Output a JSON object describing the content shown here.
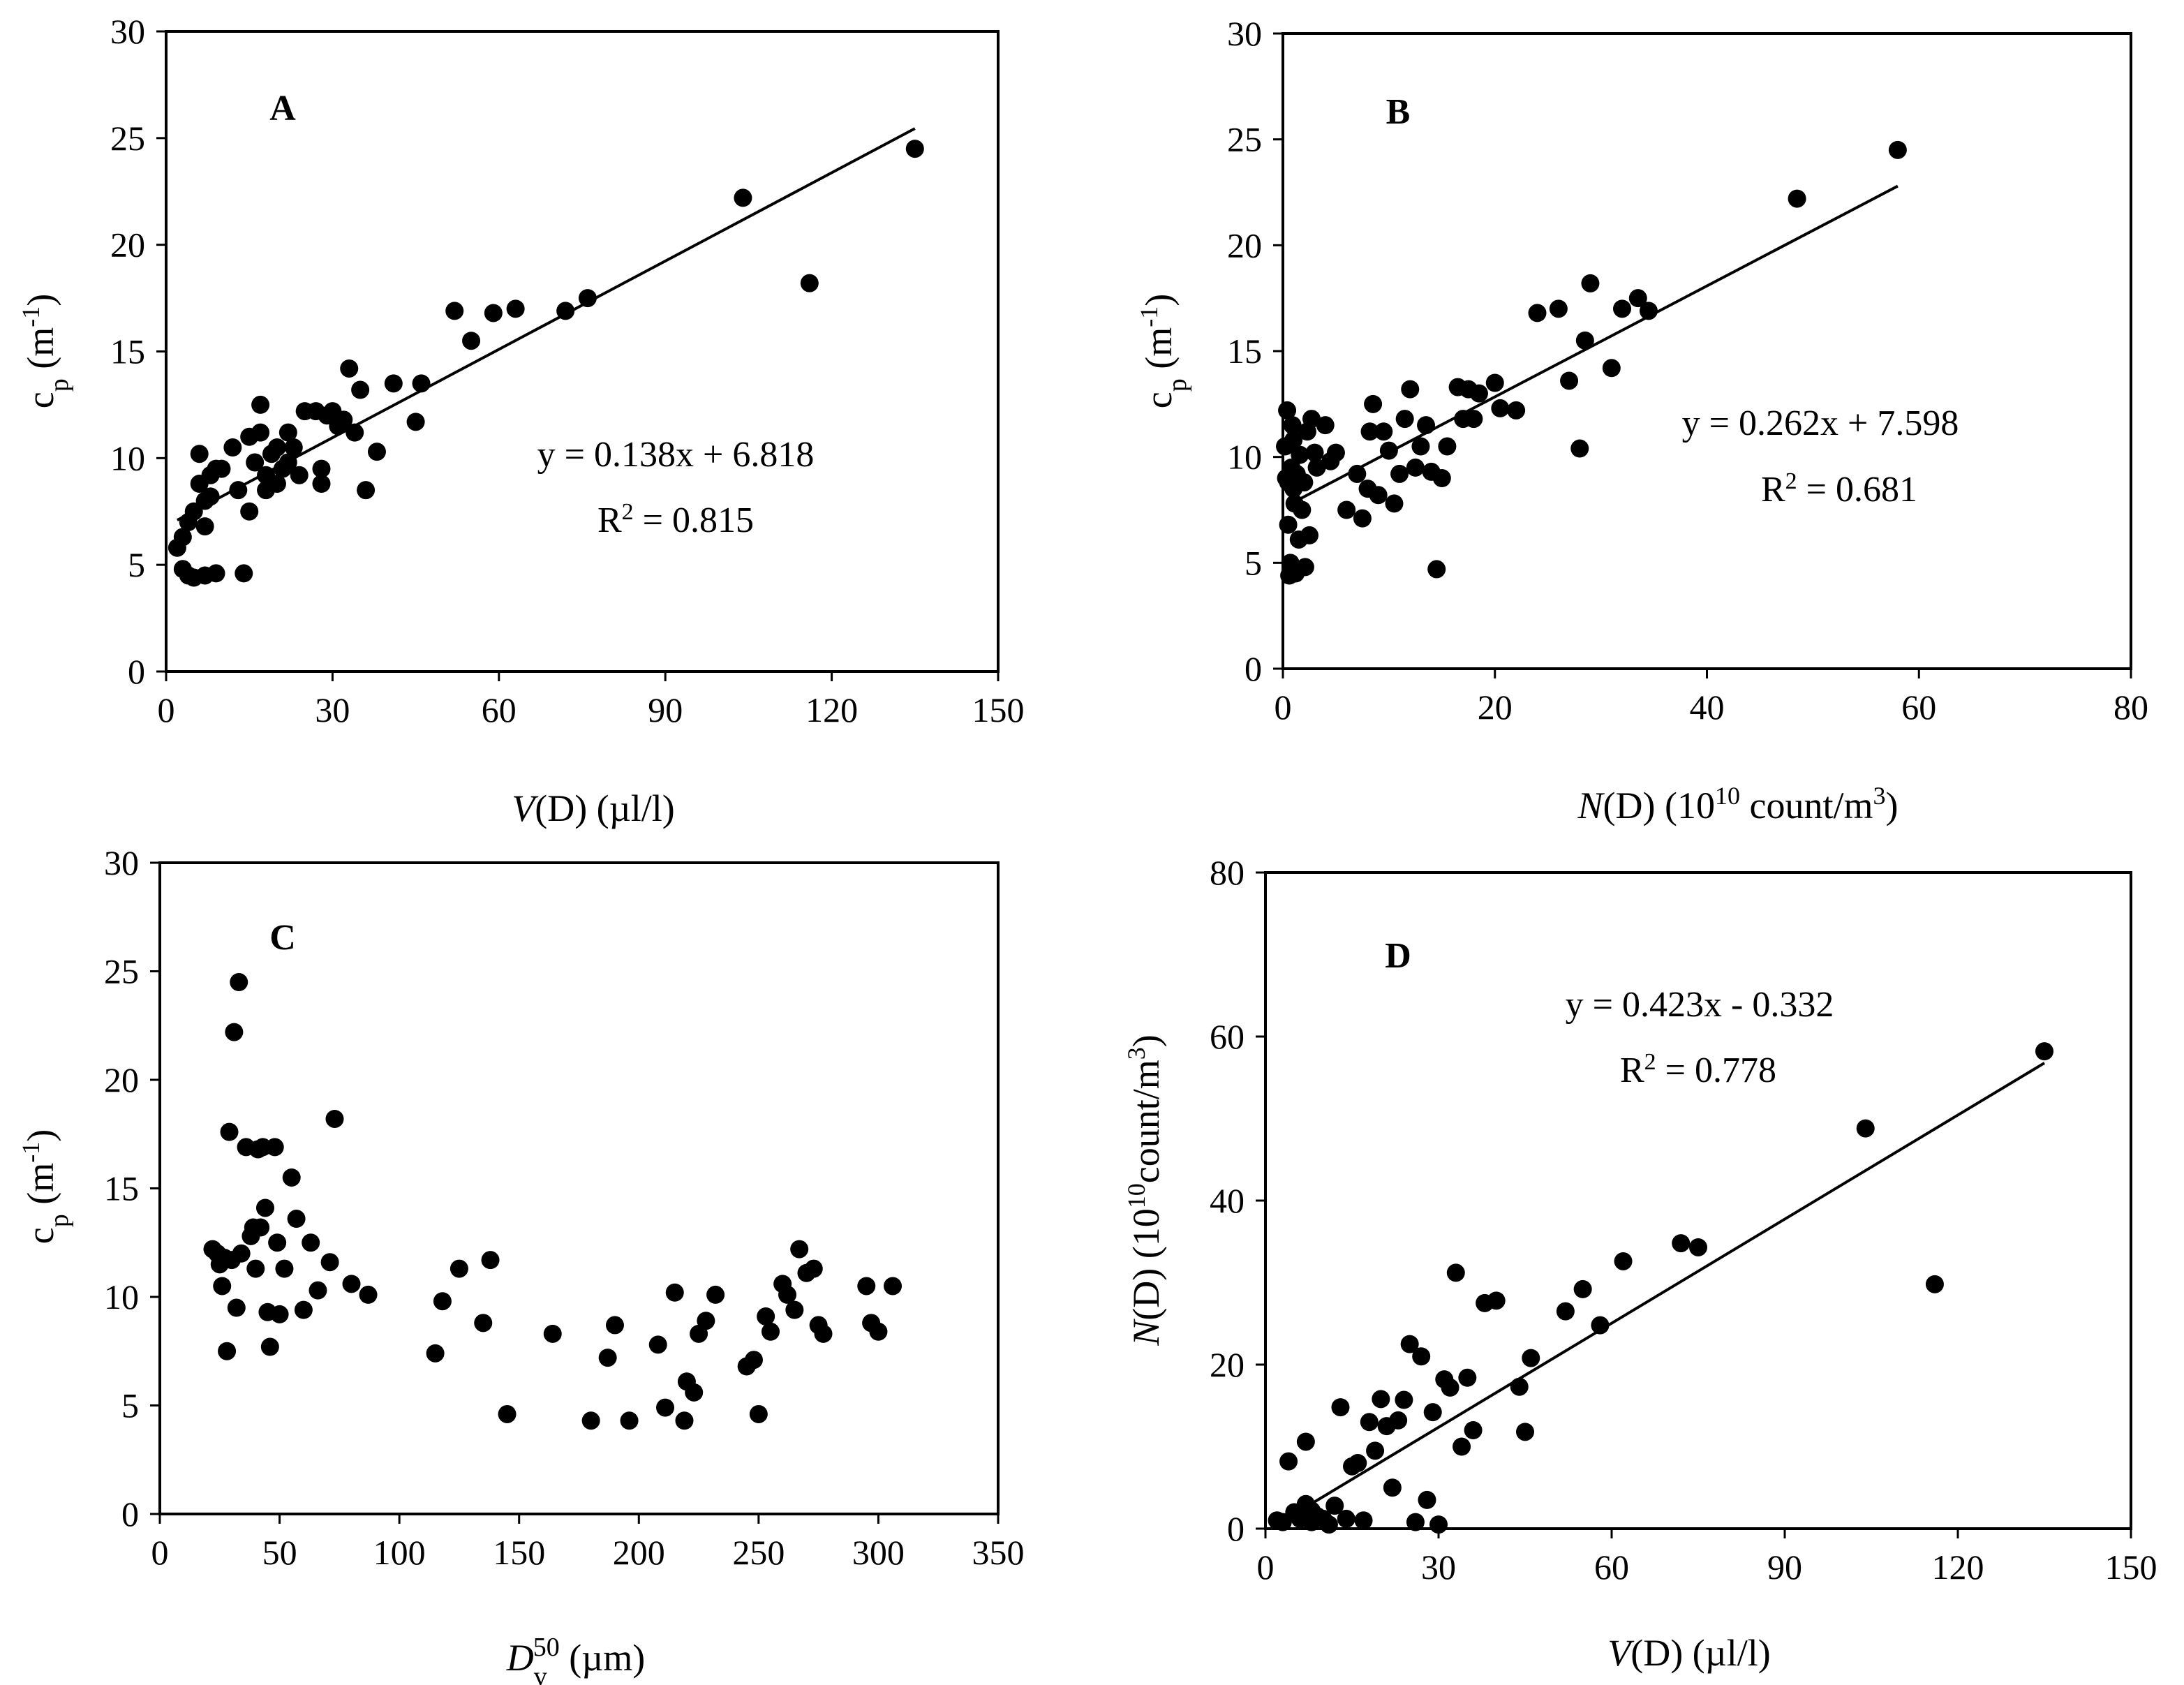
{
  "chart_data": [
    {
      "id": "A",
      "type": "scatter",
      "panel_label": "A",
      "xlabel": "V(D) (µl/l)",
      "xlabel_parts": {
        "var": "V",
        "rest": "(D)  (µl/l)"
      },
      "ylabel": "cp (m-1)",
      "ylabel_parts": {
        "base": "c",
        "sub": "p",
        "mid": " (m",
        "sup": "-1",
        "end": ")"
      },
      "xlim": [
        0,
        150
      ],
      "ylim": [
        0,
        30
      ],
      "xticks": [
        0,
        30,
        60,
        90,
        120,
        150
      ],
      "yticks": [
        0,
        5,
        10,
        15,
        20,
        25,
        30
      ],
      "fit": {
        "slope": 0.138,
        "intercept": 6.818,
        "x_range": [
          2,
          135
        ]
      },
      "equation": "y = 0.138x + 6.818",
      "r2_label": "R",
      "r2_sup": "2",
      "r2_value": " = 0.815",
      "x": [
        2,
        3,
        3,
        4,
        4,
        5,
        5,
        6,
        6,
        7,
        7,
        7,
        8,
        8,
        9,
        9,
        10,
        12,
        13,
        14,
        15,
        15,
        16,
        17,
        17,
        18,
        18,
        19,
        20,
        20,
        21,
        22,
        22,
        23,
        24,
        25,
        27,
        28,
        28,
        29,
        30,
        31,
        32,
        33,
        34,
        35,
        36,
        38,
        41,
        45,
        46,
        52,
        55,
        59,
        63,
        72,
        76,
        104,
        116,
        135
      ],
      "y": [
        5.8,
        6.3,
        4.8,
        7,
        4.5,
        7.5,
        4.4,
        8.8,
        10.2,
        8,
        6.8,
        4.5,
        9.2,
        8.2,
        9.5,
        4.6,
        9.5,
        10.5,
        8.5,
        4.6,
        11,
        7.5,
        9.8,
        12.5,
        11.2,
        9.2,
        8.5,
        10.2,
        10.5,
        8.8,
        9.5,
        11.2,
        9.8,
        10.5,
        9.2,
        12.2,
        12.2,
        9.5,
        8.8,
        12,
        12.2,
        11.5,
        11.8,
        14.2,
        11.2,
        13.2,
        8.5,
        10.3,
        13.5,
        11.7,
        13.5,
        16.9,
        15.5,
        16.8,
        17,
        16.9,
        17.5,
        22.2,
        18.2,
        24.5
      ]
    },
    {
      "id": "B",
      "type": "scatter",
      "panel_label": "B",
      "xlabel": "N(D)  (10^10 count/m3)",
      "xlabel_parts": {
        "var": "N",
        "mid": "(D)  (10",
        "sup1": "10",
        "mid2": " count/m",
        "sup2": "3",
        "end": ")"
      },
      "ylabel": "cp (m-1)",
      "ylabel_parts": {
        "base": "c",
        "sub": "p",
        "mid": " (m",
        "sup": "-1",
        "end": ")"
      },
      "xlim": [
        0,
        80
      ],
      "ylim": [
        0,
        30
      ],
      "xticks": [
        0,
        20,
        40,
        60,
        80
      ],
      "yticks": [
        0,
        5,
        10,
        15,
        20,
        25,
        30
      ],
      "fit": {
        "slope": 0.262,
        "intercept": 7.598,
        "x_range": [
          1,
          58
        ]
      },
      "equation": "y = 0.262x + 7.598",
      "r2_label": "R",
      "r2_sup": "2",
      "r2_value": " = 0.681",
      "x": [
        0.2,
        0.3,
        0.4,
        0.5,
        0.5,
        0.6,
        0.7,
        0.8,
        0.9,
        1,
        1,
        1.1,
        1.2,
        1.3,
        1.5,
        1.6,
        1.8,
        2,
        2.1,
        2.3,
        2.5,
        2.7,
        3,
        3.2,
        4,
        4.5,
        5,
        6,
        7,
        7.5,
        8,
        8.2,
        8.5,
        9,
        9.5,
        10,
        10.5,
        11,
        11.5,
        12,
        12.5,
        13,
        13.5,
        14,
        14.5,
        15,
        15.5,
        16.5,
        17,
        17.5,
        18,
        18.5,
        20,
        20.5,
        22,
        24,
        26,
        27,
        28,
        28.5,
        29,
        31,
        32,
        33.5,
        34.5,
        48.5,
        58
      ],
      "y": [
        10.5,
        9,
        12.2,
        6.8,
        8.8,
        4.4,
        5,
        9.5,
        11.5,
        8.5,
        10.8,
        7.8,
        4.5,
        9.2,
        6.1,
        10.1,
        7.5,
        8.8,
        4.8,
        11.2,
        6.3,
        11.8,
        10.2,
        9.5,
        11.5,
        9.8,
        10.2,
        7.5,
        9.2,
        7.1,
        8.5,
        11.2,
        12.5,
        8.2,
        11.2,
        10.3,
        7.8,
        9.2,
        11.8,
        13.2,
        9.5,
        10.5,
        11.5,
        9.3,
        4.7,
        9,
        10.5,
        13.3,
        11.8,
        13.2,
        11.8,
        13,
        13.5,
        12.3,
        12.2,
        16.8,
        17,
        13.6,
        10.4,
        15.5,
        18.2,
        14.2,
        17,
        17.5,
        16.9,
        22.2,
        24.5
      ]
    },
    {
      "id": "C",
      "type": "scatter",
      "panel_label": "C",
      "xlabel": "Dv50 (µm)",
      "xlabel_parts": {
        "var": "D",
        "sub": "v",
        "sup": "50",
        "end": " (µm)"
      },
      "ylabel": "cp (m-1)",
      "ylabel_parts": {
        "base": "c",
        "sub": "p",
        "mid": " (m",
        "sup": "-1",
        "end": ")"
      },
      "xlim": [
        0,
        350
      ],
      "ylim": [
        0,
        30
      ],
      "xticks": [
        0,
        50,
        100,
        150,
        200,
        250,
        300,
        350
      ],
      "yticks": [
        0,
        5,
        10,
        15,
        20,
        25,
        30
      ],
      "x": [
        22,
        24,
        25,
        26,
        27,
        28,
        29,
        30,
        31,
        32,
        33,
        34,
        36,
        38,
        39,
        40,
        41,
        42,
        43,
        44,
        45,
        46,
        48,
        49,
        50,
        52,
        55,
        57,
        60,
        63,
        66,
        71,
        73,
        80,
        87,
        115,
        118,
        125,
        135,
        138,
        145,
        164,
        180,
        187,
        190,
        196,
        208,
        211,
        215,
        219,
        220,
        223,
        225,
        228,
        232,
        245,
        248,
        250,
        253,
        255,
        260,
        262,
        265,
        267,
        270,
        273,
        275,
        277,
        295,
        297,
        300,
        306
      ],
      "y": [
        12.2,
        12,
        11.5,
        10.5,
        11.8,
        7.5,
        17.6,
        11.7,
        22.2,
        9.5,
        24.5,
        12,
        16.9,
        12.8,
        13.2,
        11.3,
        16.8,
        13.2,
        16.9,
        14.1,
        9.3,
        7.7,
        16.9,
        12.5,
        9.2,
        11.3,
        15.5,
        13.6,
        9.4,
        12.5,
        10.3,
        11.6,
        18.2,
        10.6,
        10.1,
        7.4,
        9.8,
        11.3,
        8.8,
        11.7,
        4.6,
        8.3,
        4.3,
        7.2,
        8.7,
        4.3,
        7.8,
        4.9,
        10.2,
        4.3,
        6.1,
        5.6,
        8.3,
        8.9,
        10.1,
        6.8,
        7.1,
        4.6,
        9.1,
        8.4,
        10.6,
        10.1,
        9.4,
        12.2,
        11.1,
        11.3,
        8.7,
        8.3,
        10.5,
        8.8,
        8.4,
        10.5
      ]
    },
    {
      "id": "D",
      "type": "scatter",
      "panel_label": "D",
      "xlabel": "V(D) (µl/l)",
      "xlabel_parts": {
        "var": "V",
        "rest": "(D) (µl/l)"
      },
      "ylabel": "N(D)  (10^10 count/m3)",
      "ylabel_parts": {
        "var": "N",
        "mid": "(D)  (10",
        "sup1": "10",
        "mid2": "count/m",
        "sup2": "3",
        "end": ")"
      },
      "xlim": [
        0,
        150
      ],
      "ylim": [
        0,
        80
      ],
      "xticks": [
        0,
        30,
        60,
        90,
        120,
        150
      ],
      "yticks": [
        0,
        20,
        40,
        60,
        80
      ],
      "fit": {
        "slope": 0.423,
        "intercept": -0.332,
        "x_range": [
          8,
          135
        ]
      },
      "equation": "y = 0.423x - 0.332",
      "r2_label": "R",
      "r2_sup": "2",
      "r2_value": " = 0.778",
      "x": [
        2,
        3,
        4,
        5,
        6,
        7,
        7,
        8,
        8,
        9,
        10,
        11,
        12,
        13,
        14,
        15,
        16,
        17,
        18,
        19,
        20,
        21,
        22,
        23,
        24,
        25,
        26,
        27,
        28,
        29,
        30,
        31,
        32,
        33,
        34,
        35,
        36,
        38,
        40,
        44,
        45,
        46,
        52,
        55,
        58,
        62,
        72,
        75,
        104,
        116,
        135
      ],
      "y": [
        1,
        0.8,
        8.2,
        2,
        1.2,
        3,
        10.6,
        2.2,
        0.8,
        1.5,
        1.2,
        0.5,
        2.8,
        14.8,
        1.2,
        7.6,
        8,
        1,
        13,
        9.5,
        15.8,
        12.5,
        5,
        13.2,
        15.7,
        22.5,
        0.8,
        21,
        3.5,
        14.2,
        0.5,
        18.2,
        17.2,
        31.2,
        10,
        18.4,
        12,
        27.5,
        27.8,
        17.3,
        11.8,
        20.8,
        26.5,
        29.2,
        24.8,
        32.6,
        34.8,
        34.3,
        48.8,
        29.8,
        58.2
      ]
    }
  ]
}
